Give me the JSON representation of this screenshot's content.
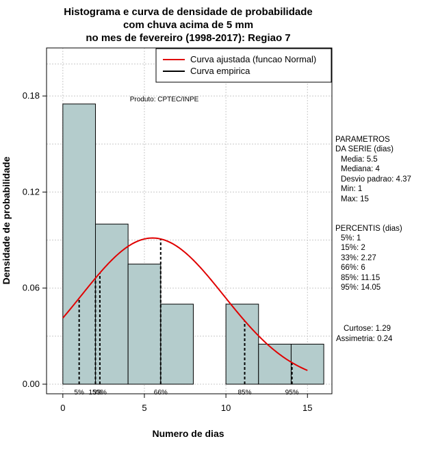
{
  "chart_data": {
    "type": "histogram",
    "title_lines": [
      "Histograma e curva de densidade de probabilidade",
      "com chuva acima de 5 mm",
      "no mes de fevereiro (1998-2017): Regiao 7"
    ],
    "xlabel": "Numero de dias",
    "ylabel": "Densidade de probabilidade",
    "xlim": [
      -1,
      16.5
    ],
    "ylim": [
      -0.006,
      0.21
    ],
    "x_ticks": [
      0,
      5,
      10,
      15
    ],
    "y_ticks": [
      0.0,
      0.06,
      0.12,
      0.18
    ],
    "y_tick_labels": [
      "0.00",
      "0.06",
      "0.12",
      "0.18"
    ],
    "bins": [
      {
        "x0": 0,
        "x1": 2,
        "density": 0.175
      },
      {
        "x0": 2,
        "x1": 4,
        "density": 0.1
      },
      {
        "x0": 4,
        "x1": 6,
        "density": 0.075
      },
      {
        "x0": 6,
        "x1": 8,
        "density": 0.05
      },
      {
        "x0": 8,
        "x1": 10,
        "density": 0.0
      },
      {
        "x0": 10,
        "x1": 12,
        "density": 0.05
      },
      {
        "x0": 12,
        "x1": 14,
        "density": 0.025
      },
      {
        "x0": 14,
        "x1": 16,
        "density": 0.025
      }
    ],
    "bar_color": "#b4cccc",
    "curve_color": "#e00000",
    "normal_fit": {
      "mean": 5.5,
      "sd": 4.37,
      "x_start": 0,
      "x_end": 15
    },
    "percentile_lines": [
      {
        "label": "5%",
        "x": 1
      },
      {
        "label": "15%",
        "x": 2
      },
      {
        "label": "33%",
        "x": 2.27
      },
      {
        "label": "66%",
        "x": 6
      },
      {
        "label": "85%",
        "x": 11.15
      },
      {
        "label": "95%",
        "x": 14.05
      }
    ],
    "legend": {
      "position": "top-right",
      "entries": [
        {
          "label": "Curva ajustada (funcao Normal)",
          "color": "#e00000"
        },
        {
          "label": "Curva empirica",
          "color": "#000000"
        }
      ]
    },
    "annotation": "Produto: CPTEC/INPE",
    "grid": true
  },
  "side_panel": {
    "params_title_1": "PARAMETROS",
    "params_title_2": "DA SERIE (dias)",
    "params": [
      "Media: 5.5",
      "Mediana: 4",
      "Desvio padrao: 4.37",
      "Min: 1",
      "Max: 15"
    ],
    "perc_title": "PERCENTIS (dias)",
    "percentis": [
      "5%: 1",
      "15%: 2",
      "33%: 2.27",
      "66%: 6",
      "85%: 11.15",
      "95%: 14.05"
    ],
    "curtose": "Curtose: 1.29",
    "assimetria": "Assimetria: 0.24"
  }
}
